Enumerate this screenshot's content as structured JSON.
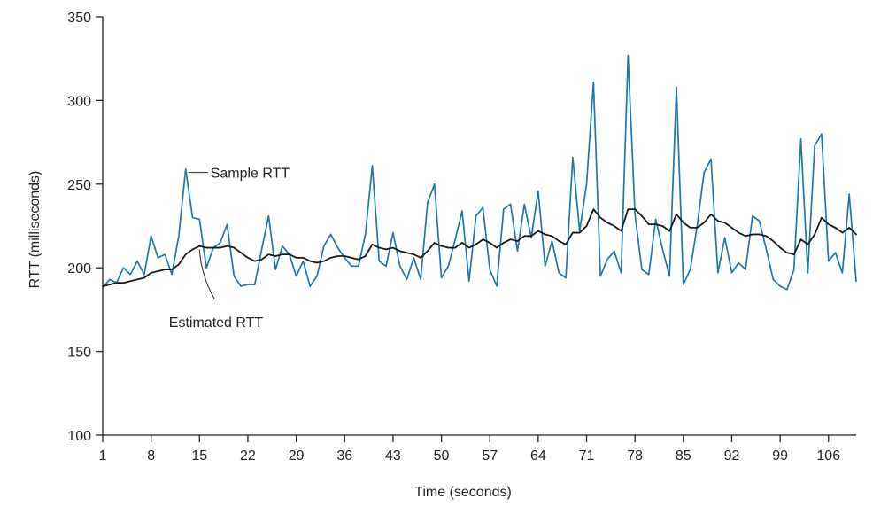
{
  "chart_data": {
    "type": "line",
    "title": "",
    "xlabel": "Time (seconds)",
    "ylabel": "RTT (milliseconds)",
    "xlim": [
      1,
      110
    ],
    "ylim": [
      100,
      350
    ],
    "x_ticks": [
      1,
      8,
      15,
      22,
      29,
      36,
      43,
      50,
      57,
      64,
      71,
      78,
      85,
      92,
      99,
      106
    ],
    "x_tick_labels": [
      "1",
      "8",
      "15",
      "22",
      "29",
      "36",
      "43",
      "50",
      "57",
      "64",
      "71",
      "78",
      "85",
      "92",
      "99",
      "106"
    ],
    "y_ticks": [
      100,
      150,
      200,
      250,
      300,
      350
    ],
    "y_tick_labels": [
      "100",
      "150",
      "200",
      "250",
      "300",
      "350"
    ],
    "grid": false,
    "legend": "none",
    "series": [
      {
        "name": "Sample RTT",
        "color": "#1f77a8",
        "points": [
          [
            1,
            188
          ],
          [
            2,
            193
          ],
          [
            3,
            191
          ],
          [
            4,
            200
          ],
          [
            5,
            196
          ],
          [
            6,
            204
          ],
          [
            7,
            196
          ],
          [
            8,
            219
          ],
          [
            9,
            206
          ],
          [
            10,
            208
          ],
          [
            11,
            196
          ],
          [
            12,
            219
          ],
          [
            13,
            259
          ],
          [
            14,
            230
          ],
          [
            15,
            229
          ],
          [
            16,
            200
          ],
          [
            17,
            212
          ],
          [
            18,
            215
          ],
          [
            19,
            226
          ],
          [
            20,
            195
          ],
          [
            21,
            189
          ],
          [
            22,
            190
          ],
          [
            23,
            190
          ],
          [
            24,
            211
          ],
          [
            25,
            231
          ],
          [
            26,
            199
          ],
          [
            27,
            213
          ],
          [
            28,
            208
          ],
          [
            29,
            195
          ],
          [
            30,
            204
          ],
          [
            31,
            189
          ],
          [
            32,
            195
          ],
          [
            33,
            213
          ],
          [
            34,
            220
          ],
          [
            35,
            212
          ],
          [
            36,
            206
          ],
          [
            37,
            201
          ],
          [
            38,
            201
          ],
          [
            39,
            220
          ],
          [
            40,
            261
          ],
          [
            41,
            204
          ],
          [
            42,
            201
          ],
          [
            43,
            221
          ],
          [
            44,
            201
          ],
          [
            45,
            193
          ],
          [
            46,
            206
          ],
          [
            47,
            193
          ],
          [
            48,
            239
          ],
          [
            49,
            250
          ],
          [
            50,
            194
          ],
          [
            51,
            201
          ],
          [
            52,
            217
          ],
          [
            53,
            234
          ],
          [
            54,
            192
          ],
          [
            55,
            231
          ],
          [
            56,
            236
          ],
          [
            57,
            199
          ],
          [
            58,
            189
          ],
          [
            59,
            235
          ],
          [
            60,
            238
          ],
          [
            61,
            210
          ],
          [
            62,
            238
          ],
          [
            63,
            218
          ],
          [
            64,
            246
          ],
          [
            65,
            201
          ],
          [
            66,
            216
          ],
          [
            67,
            197
          ],
          [
            68,
            194
          ],
          [
            69,
            266
          ],
          [
            70,
            222
          ],
          [
            71,
            250
          ],
          [
            72,
            311
          ],
          [
            73,
            195
          ],
          [
            74,
            205
          ],
          [
            75,
            210
          ],
          [
            76,
            197
          ],
          [
            77,
            327
          ],
          [
            78,
            232
          ],
          [
            79,
            199
          ],
          [
            80,
            196
          ],
          [
            81,
            229
          ],
          [
            82,
            211
          ],
          [
            83,
            195
          ],
          [
            84,
            308
          ],
          [
            85,
            190
          ],
          [
            86,
            199
          ],
          [
            87,
            225
          ],
          [
            88,
            257
          ],
          [
            89,
            265
          ],
          [
            90,
            197
          ],
          [
            91,
            218
          ],
          [
            92,
            197
          ],
          [
            93,
            203
          ],
          [
            94,
            199
          ],
          [
            95,
            231
          ],
          [
            96,
            228
          ],
          [
            97,
            211
          ],
          [
            98,
            193
          ],
          [
            99,
            189
          ],
          [
            100,
            187
          ],
          [
            101,
            199
          ],
          [
            102,
            277
          ],
          [
            103,
            197
          ],
          [
            104,
            273
          ],
          [
            105,
            280
          ],
          [
            106,
            204
          ],
          [
            107,
            209
          ],
          [
            108,
            197
          ],
          [
            109,
            244
          ],
          [
            110,
            192
          ]
        ]
      },
      {
        "name": "Estimated RTT",
        "color": "#1a1a1a",
        "points": [
          [
            1,
            189
          ],
          [
            2,
            190
          ],
          [
            3,
            191
          ],
          [
            4,
            191
          ],
          [
            5,
            192
          ],
          [
            6,
            193
          ],
          [
            7,
            194
          ],
          [
            8,
            197
          ],
          [
            9,
            198
          ],
          [
            10,
            199
          ],
          [
            11,
            199
          ],
          [
            12,
            202
          ],
          [
            13,
            208
          ],
          [
            14,
            211
          ],
          [
            15,
            213
          ],
          [
            16,
            212
          ],
          [
            17,
            212
          ],
          [
            18,
            212
          ],
          [
            19,
            213
          ],
          [
            20,
            212
          ],
          [
            21,
            209
          ],
          [
            22,
            206
          ],
          [
            23,
            204
          ],
          [
            24,
            205
          ],
          [
            25,
            208
          ],
          [
            26,
            207
          ],
          [
            27,
            208
          ],
          [
            28,
            208
          ],
          [
            29,
            206
          ],
          [
            30,
            206
          ],
          [
            31,
            204
          ],
          [
            32,
            203
          ],
          [
            33,
            204
          ],
          [
            34,
            206
          ],
          [
            35,
            207
          ],
          [
            36,
            207
          ],
          [
            37,
            206
          ],
          [
            38,
            205
          ],
          [
            39,
            207
          ],
          [
            40,
            214
          ],
          [
            41,
            212
          ],
          [
            42,
            211
          ],
          [
            43,
            212
          ],
          [
            44,
            210
          ],
          [
            45,
            209
          ],
          [
            46,
            208
          ],
          [
            47,
            206
          ],
          [
            48,
            210
          ],
          [
            49,
            215
          ],
          [
            50,
            213
          ],
          [
            51,
            212
          ],
          [
            52,
            212
          ],
          [
            53,
            215
          ],
          [
            54,
            212
          ],
          [
            55,
            214
          ],
          [
            56,
            217
          ],
          [
            57,
            215
          ],
          [
            58,
            212
          ],
          [
            59,
            215
          ],
          [
            60,
            217
          ],
          [
            61,
            216
          ],
          [
            62,
            219
          ],
          [
            63,
            219
          ],
          [
            64,
            222
          ],
          [
            65,
            220
          ],
          [
            66,
            219
          ],
          [
            67,
            216
          ],
          [
            68,
            214
          ],
          [
            69,
            221
          ],
          [
            70,
            221
          ],
          [
            71,
            225
          ],
          [
            72,
            235
          ],
          [
            73,
            230
          ],
          [
            74,
            227
          ],
          [
            75,
            225
          ],
          [
            76,
            222
          ],
          [
            77,
            235
          ],
          [
            78,
            235
          ],
          [
            79,
            231
          ],
          [
            80,
            226
          ],
          [
            81,
            226
          ],
          [
            82,
            225
          ],
          [
            83,
            222
          ],
          [
            84,
            232
          ],
          [
            85,
            227
          ],
          [
            86,
            224
          ],
          [
            87,
            224
          ],
          [
            88,
            227
          ],
          [
            89,
            232
          ],
          [
            90,
            228
          ],
          [
            91,
            227
          ],
          [
            92,
            224
          ],
          [
            93,
            221
          ],
          [
            94,
            219
          ],
          [
            95,
            220
          ],
          [
            96,
            220
          ],
          [
            97,
            219
          ],
          [
            98,
            216
          ],
          [
            99,
            212
          ],
          [
            100,
            209
          ],
          [
            101,
            208
          ],
          [
            102,
            217
          ],
          [
            103,
            214
          ],
          [
            104,
            220
          ],
          [
            105,
            230
          ],
          [
            106,
            226
          ],
          [
            107,
            224
          ],
          [
            108,
            221
          ],
          [
            109,
            224
          ],
          [
            110,
            220
          ]
        ]
      }
    ],
    "annotations": [
      {
        "text": "Sample RTT",
        "series": "Sample RTT",
        "target_x": 13,
        "target_y": 257
      },
      {
        "text": "Estimated RTT",
        "series": "Estimated RTT",
        "target_x": 15,
        "target_y": 211
      }
    ]
  }
}
